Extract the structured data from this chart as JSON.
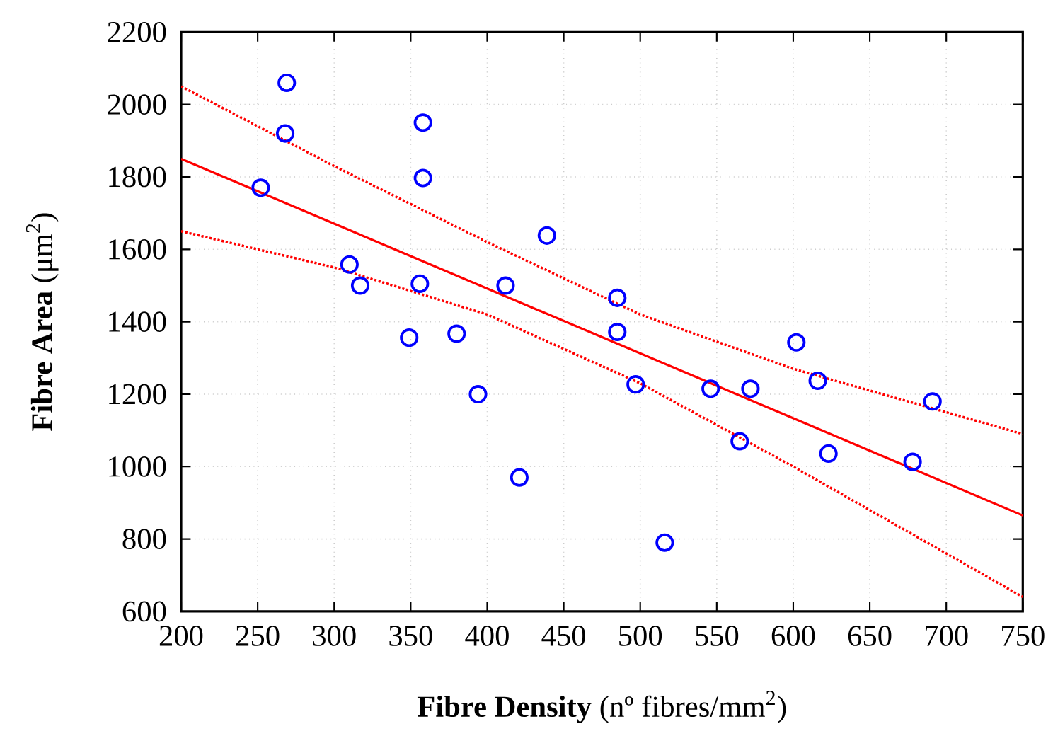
{
  "chart_data": {
    "type": "scatter",
    "xlabel": "**Fibre Density** (nº fibres/mm$^{2}$)",
    "ylabel": "**Fibre Area** (μm$^{2}$)",
    "xlim": [
      200,
      750
    ],
    "xticks": [
      200,
      250,
      300,
      350,
      400,
      450,
      500,
      550,
      600,
      650,
      700,
      750
    ],
    "ylim": [
      600,
      2200
    ],
    "yticks": [
      600,
      800,
      1000,
      1200,
      1400,
      1600,
      1800,
      2000,
      2200
    ],
    "grid": true,
    "series": [
      {
        "color": "#0000ff",
        "marker": "circle",
        "x": [
          252,
          269,
          268,
          310,
          317,
          349,
          356,
          358,
          358,
          380,
          394,
          412,
          421,
          439,
          485,
          485,
          497,
          516,
          546,
          572,
          565,
          602,
          616,
          623,
          678,
          691
        ],
        "values": [
          1770,
          2060,
          1920,
          1558,
          1500,
          1356,
          1505,
          1797,
          1950,
          1367,
          1200,
          1500,
          970,
          1638,
          1466,
          1372,
          1227,
          790,
          1215,
          1215,
          1070,
          1343,
          1237,
          1036,
          1013,
          1180
        ]
      },
      {
        "type": "line",
        "color": "#ff0000",
        "line_style": "solid",
        "x": [
          200,
          750
        ],
        "values": [
          1850,
          865
        ]
      },
      {
        "type": "line",
        "color": "#ff0000",
        "line_style": "dotted",
        "x": [
          200,
          300,
          400,
          500,
          600,
          700,
          750
        ],
        "values": [
          2050,
          1830,
          1620,
          1420,
          1270,
          1150,
          1090
        ]
      },
      {
        "type": "line",
        "color": "#ff0000",
        "line_style": "dotted",
        "x": [
          200,
          300,
          400,
          500,
          600,
          700,
          750
        ],
        "values": [
          1650,
          1550,
          1420,
          1230,
          1000,
          760,
          640
        ]
      }
    ]
  }
}
